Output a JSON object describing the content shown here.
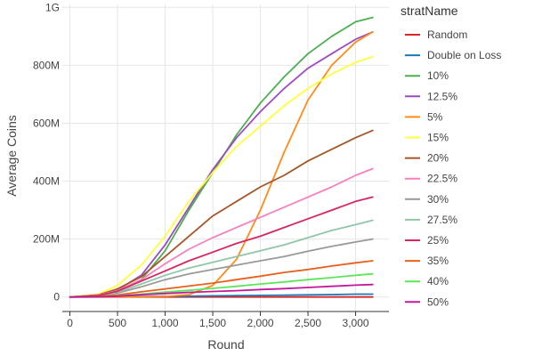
{
  "chart_data": {
    "type": "line",
    "title": "",
    "xlabel": "Round",
    "ylabel": "Average Coins",
    "xlim": [
      -80,
      3350
    ],
    "ylim": [
      -50000000,
      1010000000
    ],
    "x_ticks": [
      0,
      500,
      1000,
      1500,
      2000,
      2500,
      3000
    ],
    "x_tick_labels": [
      "0",
      "500",
      "1,000",
      "1,500",
      "2,000",
      "2,500",
      "3,000"
    ],
    "y_ticks": [
      0,
      200000000,
      400000000,
      600000000,
      800000000,
      1000000000
    ],
    "y_tick_labels": [
      "0",
      "200M",
      "400M",
      "600M",
      "800M",
      "1G"
    ],
    "grid": true,
    "legend": {
      "title": "stratName",
      "placement": "right"
    },
    "x": [
      0,
      300,
      500,
      750,
      1000,
      1250,
      1500,
      1750,
      2000,
      2250,
      2500,
      2750,
      3000,
      3180
    ],
    "series": [
      {
        "name": "Random",
        "color": "#d62728",
        "values": [
          0,
          0,
          0,
          0,
          0,
          0,
          0,
          0,
          0,
          0,
          0,
          0,
          0,
          0
        ]
      },
      {
        "name": "Double on Loss",
        "color": "#1f77b4",
        "values": [
          0,
          300000,
          800000,
          1500000,
          2500000,
          3000000,
          4000000,
          5000000,
          5500000,
          6500000,
          7500000,
          8500000,
          10000000,
          10000000
        ]
      },
      {
        "name": "10%",
        "color": "#4caf50",
        "values": [
          0,
          5000000,
          20000000,
          60000000,
          160000000,
          300000000,
          430000000,
          560000000,
          670000000,
          760000000,
          840000000,
          900000000,
          950000000,
          965000000
        ]
      },
      {
        "name": "12.5%",
        "color": "#9e4bbf",
        "values": [
          0,
          6000000,
          25000000,
          75000000,
          180000000,
          310000000,
          440000000,
          550000000,
          640000000,
          720000000,
          790000000,
          840000000,
          890000000,
          915000000
        ]
      },
      {
        "name": "5%",
        "color": "#ff8c1a",
        "values": [
          0,
          0,
          200000,
          600000,
          2000000,
          8000000,
          40000000,
          130000000,
          300000000,
          500000000,
          680000000,
          800000000,
          880000000,
          915000000
        ]
      },
      {
        "name": "15%",
        "color": "#ffff3c",
        "values": [
          0,
          10000000,
          40000000,
          110000000,
          210000000,
          330000000,
          430000000,
          520000000,
          590000000,
          660000000,
          720000000,
          770000000,
          810000000,
          830000000
        ]
      },
      {
        "name": "20%",
        "color": "#a65628",
        "values": [
          0,
          7000000,
          28000000,
          70000000,
          140000000,
          210000000,
          280000000,
          330000000,
          380000000,
          420000000,
          470000000,
          510000000,
          550000000,
          575000000
        ]
      },
      {
        "name": "22.5%",
        "color": "#f781bf",
        "values": [
          0,
          6000000,
          22000000,
          60000000,
          115000000,
          165000000,
          205000000,
          240000000,
          275000000,
          310000000,
          345000000,
          380000000,
          420000000,
          443000000
        ]
      },
      {
        "name": "30%",
        "color": "#999999",
        "values": [
          0,
          4000000,
          14000000,
          35000000,
          60000000,
          80000000,
          95000000,
          110000000,
          125000000,
          140000000,
          158000000,
          175000000,
          190000000,
          200000000
        ]
      },
      {
        "name": "27.5%",
        "color": "#8fc7a8",
        "values": [
          0,
          4500000,
          17000000,
          45000000,
          75000000,
          100000000,
          120000000,
          140000000,
          160000000,
          180000000,
          205000000,
          230000000,
          250000000,
          265000000
        ]
      },
      {
        "name": "25%",
        "color": "#d6275f",
        "values": [
          0,
          5000000,
          20000000,
          55000000,
          90000000,
          125000000,
          155000000,
          185000000,
          210000000,
          240000000,
          270000000,
          300000000,
          330000000,
          345000000
        ]
      },
      {
        "name": "35%",
        "color": "#e8601c",
        "values": [
          0,
          2000000,
          7000000,
          18000000,
          28000000,
          38000000,
          48000000,
          60000000,
          72000000,
          85000000,
          95000000,
          107000000,
          118000000,
          125000000
        ]
      },
      {
        "name": "40%",
        "color": "#5ce65c",
        "values": [
          0,
          1000000,
          4000000,
          10000000,
          17000000,
          23000000,
          30000000,
          37000000,
          45000000,
          52000000,
          60000000,
          67000000,
          75000000,
          80000000
        ]
      },
      {
        "name": "50%",
        "color": "#c2189b",
        "values": [
          0,
          1000000,
          3000000,
          8000000,
          12000000,
          16000000,
          19000000,
          22000000,
          26000000,
          29000000,
          33000000,
          37000000,
          41000000,
          43000000
        ]
      }
    ]
  }
}
